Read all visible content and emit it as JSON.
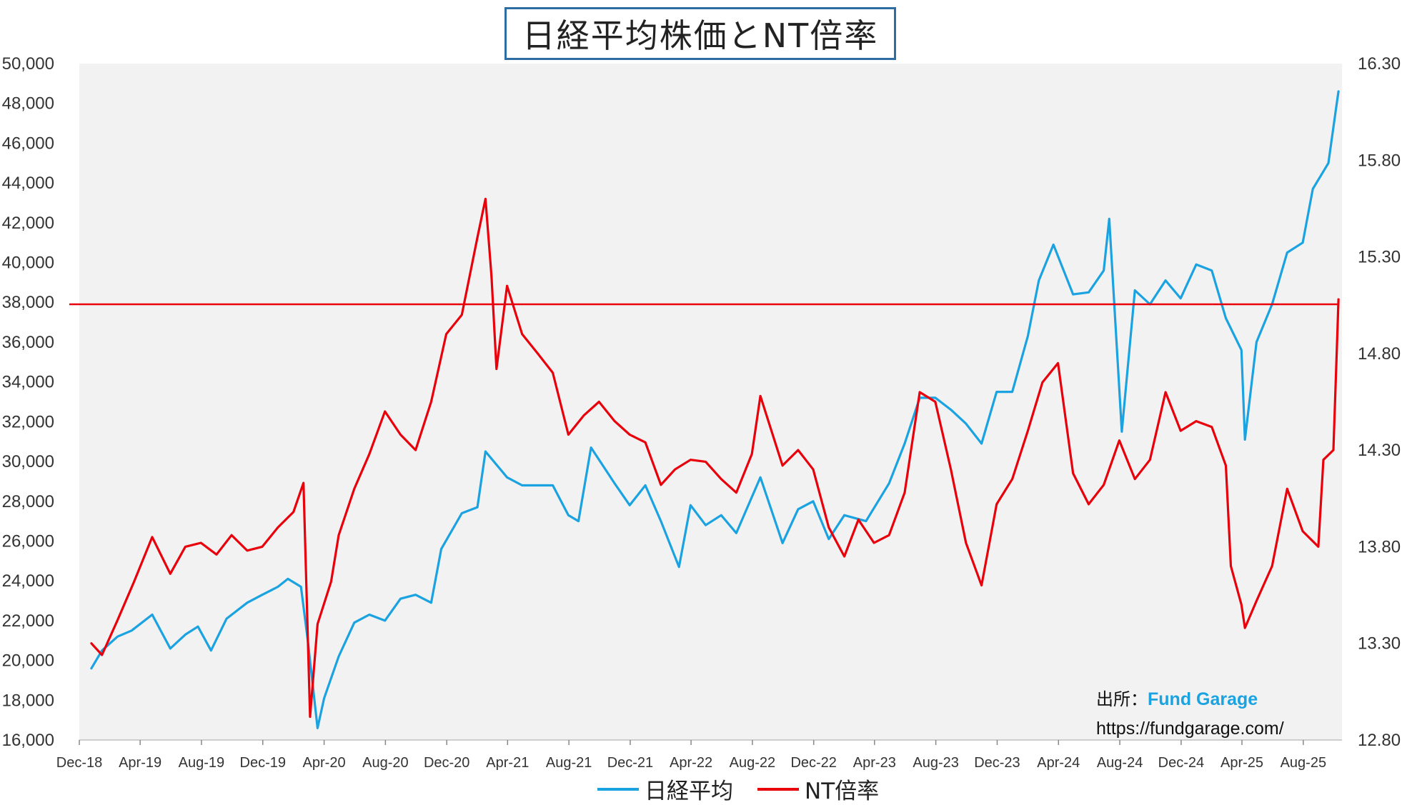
{
  "chart_data": {
    "type": "line",
    "title": "日経平均株価とNT倍率",
    "x_tick_labels": [
      "Dec-18",
      "Apr-19",
      "Aug-19",
      "Dec-19",
      "Apr-20",
      "Aug-20",
      "Dec-20",
      "Apr-21",
      "Aug-21",
      "Dec-21",
      "Apr-22",
      "Aug-22",
      "Dec-22",
      "Apr-23",
      "Aug-23",
      "Dec-23",
      "Apr-24",
      "Aug-24",
      "Dec-24",
      "Apr-25",
      "Aug-25"
    ],
    "y_left": {
      "ylim": [
        16000,
        50000
      ],
      "ticks": [
        "16,000",
        "18,000",
        "20,000",
        "22,000",
        "24,000",
        "26,000",
        "28,000",
        "30,000",
        "32,000",
        "34,000",
        "36,000",
        "38,000",
        "40,000",
        "42,000",
        "44,000",
        "46,000",
        "48,000",
        "50,000"
      ]
    },
    "y_right": {
      "ylim": [
        12.8,
        16.3
      ],
      "ticks": [
        "12.80",
        "13.30",
        "13.80",
        "14.30",
        "14.80",
        "15.30",
        "15.80",
        "16.30"
      ]
    },
    "x_range": [
      "2018-12",
      "2025-10"
    ],
    "grid": false,
    "legend_position": "bottom",
    "reference_line": {
      "axis": "left",
      "value": 37900,
      "color": "#e8000b"
    },
    "series": [
      {
        "name": "日経平均",
        "axis": "left",
        "color": "#1aa3e0",
        "points": [
          [
            "2018-12-25",
            19600
          ],
          [
            "2019-01-15",
            20500
          ],
          [
            "2019-02-15",
            21200
          ],
          [
            "2019-03-15",
            21500
          ],
          [
            "2019-04-25",
            22300
          ],
          [
            "2019-05-31",
            20600
          ],
          [
            "2019-06-30",
            21300
          ],
          [
            "2019-07-25",
            21700
          ],
          [
            "2019-08-20",
            20500
          ],
          [
            "2019-09-20",
            22100
          ],
          [
            "2019-10-31",
            22900
          ],
          [
            "2019-11-30",
            23300
          ],
          [
            "2019-12-31",
            23700
          ],
          [
            "2020-01-20",
            24100
          ],
          [
            "2020-02-15",
            23700
          ],
          [
            "2020-02-28",
            21100
          ],
          [
            "2020-03-19",
            16600
          ],
          [
            "2020-04-01",
            18100
          ],
          [
            "2020-04-30",
            20200
          ],
          [
            "2020-05-31",
            21900
          ],
          [
            "2020-06-30",
            22300
          ],
          [
            "2020-07-31",
            22000
          ],
          [
            "2020-08-31",
            23100
          ],
          [
            "2020-09-30",
            23300
          ],
          [
            "2020-10-31",
            22900
          ],
          [
            "2020-11-20",
            25600
          ],
          [
            "2020-12-31",
            27400
          ],
          [
            "2021-01-31",
            27700
          ],
          [
            "2021-02-16",
            30500
          ],
          [
            "2021-03-31",
            29200
          ],
          [
            "2021-04-30",
            28800
          ],
          [
            "2021-05-31",
            28800
          ],
          [
            "2021-06-30",
            28800
          ],
          [
            "2021-07-31",
            27300
          ],
          [
            "2021-08-20",
            27000
          ],
          [
            "2021-09-14",
            30700
          ],
          [
            "2021-10-31",
            28900
          ],
          [
            "2021-11-30",
            27800
          ],
          [
            "2021-12-31",
            28800
          ],
          [
            "2022-01-31",
            27000
          ],
          [
            "2022-03-08",
            24700
          ],
          [
            "2022-03-31",
            27800
          ],
          [
            "2022-04-30",
            26800
          ],
          [
            "2022-05-31",
            27300
          ],
          [
            "2022-06-30",
            26400
          ],
          [
            "2022-08-17",
            29200
          ],
          [
            "2022-09-30",
            25900
          ],
          [
            "2022-10-31",
            27600
          ],
          [
            "2022-11-30",
            28000
          ],
          [
            "2022-12-31",
            26100
          ],
          [
            "2023-01-31",
            27300
          ],
          [
            "2023-03-15",
            27000
          ],
          [
            "2023-04-30",
            28900
          ],
          [
            "2023-05-31",
            30900
          ],
          [
            "2023-06-30",
            33200
          ],
          [
            "2023-07-31",
            33200
          ],
          [
            "2023-08-31",
            32600
          ],
          [
            "2023-09-30",
            31900
          ],
          [
            "2023-10-31",
            30900
          ],
          [
            "2023-11-30",
            33500
          ],
          [
            "2023-12-31",
            33500
          ],
          [
            "2024-01-31",
            36300
          ],
          [
            "2024-02-22",
            39100
          ],
          [
            "2024-03-22",
            40900
          ],
          [
            "2024-04-30",
            38400
          ],
          [
            "2024-05-31",
            38500
          ],
          [
            "2024-06-30",
            39600
          ],
          [
            "2024-07-11",
            42200
          ],
          [
            "2024-08-05",
            31500
          ],
          [
            "2024-08-31",
            38600
          ],
          [
            "2024-09-30",
            37900
          ],
          [
            "2024-10-31",
            39100
          ],
          [
            "2024-11-30",
            38200
          ],
          [
            "2024-12-31",
            39900
          ],
          [
            "2025-01-31",
            39600
          ],
          [
            "2025-02-28",
            37200
          ],
          [
            "2025-03-31",
            35600
          ],
          [
            "2025-04-07",
            31100
          ],
          [
            "2025-04-30",
            36000
          ],
          [
            "2025-05-31",
            37900
          ],
          [
            "2025-06-30",
            40500
          ],
          [
            "2025-07-31",
            41000
          ],
          [
            "2025-08-20",
            43700
          ],
          [
            "2025-09-20",
            45000
          ],
          [
            "2025-10-06",
            47900
          ],
          [
            "2025-10-10",
            48600
          ]
        ]
      },
      {
        "name": "NT倍率",
        "axis": "right",
        "color": "#e8000b",
        "points": [
          [
            "2018-12-25",
            13.3
          ],
          [
            "2019-01-15",
            13.24
          ],
          [
            "2019-02-15",
            13.42
          ],
          [
            "2019-03-20",
            13.62
          ],
          [
            "2019-04-25",
            13.85
          ],
          [
            "2019-05-31",
            13.66
          ],
          [
            "2019-06-30",
            13.8
          ],
          [
            "2019-07-31",
            13.82
          ],
          [
            "2019-08-31",
            13.76
          ],
          [
            "2019-09-30",
            13.86
          ],
          [
            "2019-10-31",
            13.78
          ],
          [
            "2019-11-30",
            13.8
          ],
          [
            "2019-12-31",
            13.9
          ],
          [
            "2020-01-31",
            13.98
          ],
          [
            "2020-02-20",
            14.13
          ],
          [
            "2020-03-04",
            12.92
          ],
          [
            "2020-03-19",
            13.4
          ],
          [
            "2020-04-15",
            13.62
          ],
          [
            "2020-04-30",
            13.86
          ],
          [
            "2020-05-31",
            14.1
          ],
          [
            "2020-06-30",
            14.28
          ],
          [
            "2020-07-31",
            14.5
          ],
          [
            "2020-08-31",
            14.38
          ],
          [
            "2020-09-30",
            14.3
          ],
          [
            "2020-10-31",
            14.55
          ],
          [
            "2020-11-30",
            14.9
          ],
          [
            "2020-12-31",
            15.0
          ],
          [
            "2021-01-31",
            15.4
          ],
          [
            "2021-02-16",
            15.6
          ],
          [
            "2021-02-28",
            15.2
          ],
          [
            "2021-03-10",
            14.72
          ],
          [
            "2021-03-31",
            15.15
          ],
          [
            "2021-04-30",
            14.9
          ],
          [
            "2021-05-31",
            14.8
          ],
          [
            "2021-06-30",
            14.7
          ],
          [
            "2021-07-31",
            14.38
          ],
          [
            "2021-08-31",
            14.48
          ],
          [
            "2021-09-30",
            14.55
          ],
          [
            "2021-10-31",
            14.45
          ],
          [
            "2021-11-30",
            14.38
          ],
          [
            "2021-12-31",
            14.34
          ],
          [
            "2022-01-31",
            14.12
          ],
          [
            "2022-02-28",
            14.2
          ],
          [
            "2022-03-31",
            14.25
          ],
          [
            "2022-04-30",
            14.24
          ],
          [
            "2022-05-31",
            14.15
          ],
          [
            "2022-06-30",
            14.08
          ],
          [
            "2022-07-31",
            14.28
          ],
          [
            "2022-08-17",
            14.58
          ],
          [
            "2022-09-30",
            14.22
          ],
          [
            "2022-10-31",
            14.3
          ],
          [
            "2022-11-30",
            14.2
          ],
          [
            "2022-12-31",
            13.9
          ],
          [
            "2023-01-31",
            13.75
          ],
          [
            "2023-02-28",
            13.94
          ],
          [
            "2023-03-31",
            13.82
          ],
          [
            "2023-04-30",
            13.86
          ],
          [
            "2023-05-31",
            14.08
          ],
          [
            "2023-06-30",
            14.6
          ],
          [
            "2023-07-31",
            14.55
          ],
          [
            "2023-08-31",
            14.2
          ],
          [
            "2023-09-30",
            13.82
          ],
          [
            "2023-10-31",
            13.6
          ],
          [
            "2023-11-30",
            14.02
          ],
          [
            "2023-12-31",
            14.15
          ],
          [
            "2024-01-31",
            14.4
          ],
          [
            "2024-02-29",
            14.65
          ],
          [
            "2024-03-31",
            14.75
          ],
          [
            "2024-04-30",
            14.18
          ],
          [
            "2024-05-31",
            14.02
          ],
          [
            "2024-06-30",
            14.12
          ],
          [
            "2024-07-31",
            14.35
          ],
          [
            "2024-08-31",
            14.15
          ],
          [
            "2024-09-30",
            14.25
          ],
          [
            "2024-10-31",
            14.6
          ],
          [
            "2024-11-30",
            14.4
          ],
          [
            "2024-12-31",
            14.45
          ],
          [
            "2025-01-31",
            14.42
          ],
          [
            "2025-02-28",
            14.22
          ],
          [
            "2025-03-10",
            13.7
          ],
          [
            "2025-03-31",
            13.5
          ],
          [
            "2025-04-07",
            13.38
          ],
          [
            "2025-04-30",
            13.52
          ],
          [
            "2025-05-31",
            13.7
          ],
          [
            "2025-06-30",
            14.1
          ],
          [
            "2025-07-31",
            13.88
          ],
          [
            "2025-08-31",
            13.8
          ],
          [
            "2025-09-10",
            14.25
          ],
          [
            "2025-09-30",
            14.3
          ],
          [
            "2025-10-08",
            14.92
          ],
          [
            "2025-10-10",
            15.08
          ]
        ]
      }
    ]
  },
  "source": {
    "label": "出所：",
    "name": "Fund Garage",
    "url": "https://fundgarage.com/"
  }
}
